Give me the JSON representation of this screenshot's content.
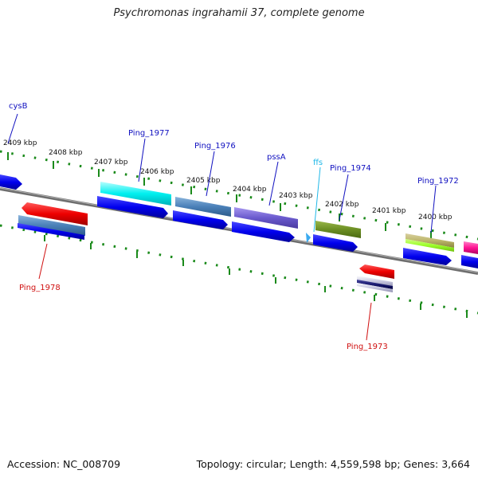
{
  "title": "Psychromonas ingrahamii 37, complete genome",
  "footer": {
    "accession": "Accession: NC_008709",
    "summary": "Topology: circular; Length: 4,559,598 bp; Genes: 3,664"
  },
  "kbp_labels": [
    "2409 kbp",
    "2408 kbp",
    "2407 kbp",
    "2406 kbp",
    "2405 kbp",
    "2404 kbp",
    "2403 kbp",
    "2402 kbp",
    "2401 kbp",
    "2400 kbp"
  ],
  "gene_labels": {
    "cysB": "cysB",
    "ping1977": "Ping_1977",
    "ping1976": "Ping_1976",
    "pssA": "pssA",
    "ffs": "ffs",
    "ping1974": "Ping_1974",
    "ping1972": "Ping_1972",
    "ping1978": "Ping_1978",
    "ping1973": "Ping_1973"
  },
  "colors": {
    "forward_label": "#1010c0",
    "reverse_label": "#d01010",
    "rna_label": "#20b8e8",
    "backbone": "#777777",
    "tick": "#1a8a1a",
    "cds_blue": "#0000ee"
  }
}
